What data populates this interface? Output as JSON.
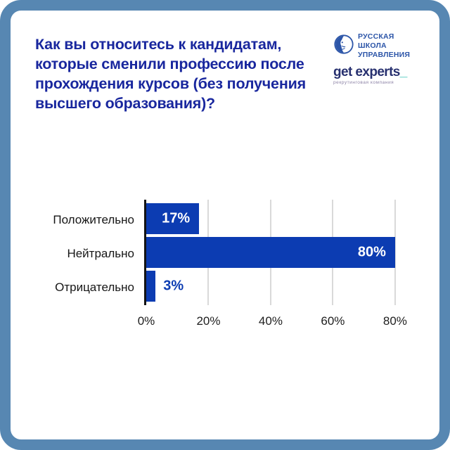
{
  "frame": {
    "border_color": "#5787B2",
    "background": "#FFFFFF"
  },
  "header": {
    "title": "Как вы относитесь к кандидатам, которые сменили профессию после прохождения курсов (без получения высшего образования)?",
    "title_color": "#19279E"
  },
  "logos": {
    "rsu": {
      "line1": "РУССКАЯ",
      "line2": "ШКОЛА",
      "line3": "УПРАВЛЕНИЯ",
      "color": "#2C55A8"
    },
    "get_experts": {
      "wordmark": "get experts",
      "accent": "_",
      "tagline": "рекрутинговая компания",
      "wordmark_color": "#27306F",
      "accent_color": "#35C4B5"
    }
  },
  "chart_data": {
    "type": "bar",
    "orientation": "horizontal",
    "title": "",
    "categories": [
      "Положительно",
      "Нейтрально",
      "Отрицательно"
    ],
    "values": [
      17,
      80,
      3
    ],
    "value_labels": [
      "17%",
      "80%",
      "3%"
    ],
    "xlim": [
      0,
      85
    ],
    "ticks": [
      0,
      20,
      40,
      60,
      80
    ],
    "tick_labels": [
      "0%",
      "20%",
      "40%",
      "60%",
      "80%"
    ],
    "bar_color": "#0C3CB2",
    "grid": true,
    "gridline_color": "#D9D9D9",
    "axis_color": "#141414",
    "label_inside_threshold": 8
  }
}
